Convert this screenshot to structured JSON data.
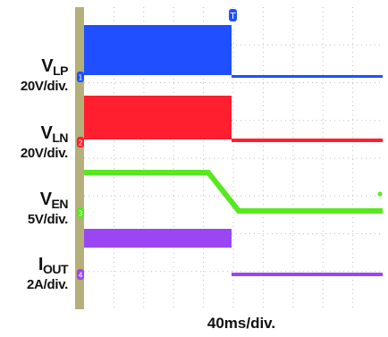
{
  "chart_data": {
    "type": "line",
    "title": "",
    "xlabel": "40ms/div.",
    "time_divisions": 10,
    "trigger_division": 5,
    "colors": {
      "frame": "#b5b07a",
      "grid": "#bfbfbf",
      "v_lp": "#1f4fff",
      "v_ln": "#ff1f2e",
      "v_en": "#57e81f",
      "i_out": "#9a46f2"
    },
    "channels": [
      {
        "id": "v_lp",
        "name": "V",
        "sub": "LP",
        "scale": "20V/div.",
        "marker": "1"
      },
      {
        "id": "v_ln",
        "name": "V",
        "sub": "LN",
        "scale": "20V/div.",
        "marker": "2"
      },
      {
        "id": "v_en",
        "name": "V",
        "sub": "EN",
        "scale": "5V/div.",
        "marker": "3"
      },
      {
        "id": "i_out",
        "name": "I",
        "sub": "OUT",
        "scale": "2A/div.",
        "marker": "4"
      }
    ]
  }
}
